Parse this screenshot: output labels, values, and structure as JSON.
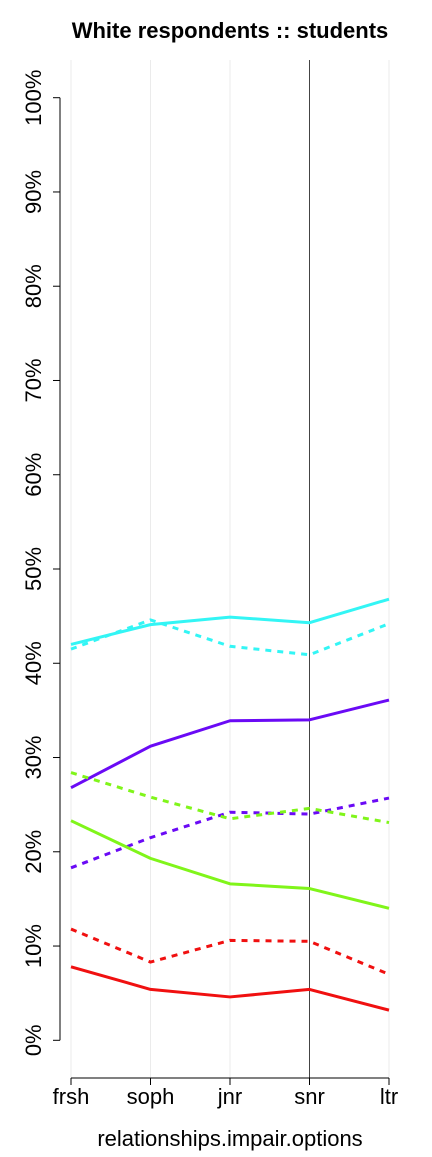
{
  "chart_data": {
    "type": "line",
    "title": "White respondents :: students",
    "x_label": "relationships.impair.options",
    "categories": [
      "frsh",
      "soph",
      "jnr",
      "snr",
      "ltr"
    ],
    "series": [
      {
        "color": "#33f5f5",
        "dash": false,
        "values": [
          42.0,
          44.1,
          44.9,
          44.3,
          46.8
        ]
      },
      {
        "color": "#33f5f5",
        "dash": true,
        "values": [
          41.5,
          44.6,
          41.8,
          40.9,
          44.2
        ]
      },
      {
        "color": "#6a0af5",
        "dash": false,
        "values": [
          26.8,
          31.2,
          33.9,
          34.0,
          36.1
        ]
      },
      {
        "color": "#6a0af5",
        "dash": true,
        "values": [
          18.3,
          21.5,
          24.2,
          24.0,
          25.7
        ]
      },
      {
        "color": "#80f51a",
        "dash": false,
        "values": [
          23.3,
          19.3,
          16.6,
          16.1,
          14.0
        ]
      },
      {
        "color": "#80f51a",
        "dash": true,
        "values": [
          28.4,
          25.8,
          23.5,
          24.6,
          23.1
        ]
      },
      {
        "color": "#f01010",
        "dash": false,
        "values": [
          7.8,
          5.4,
          4.6,
          5.4,
          3.2
        ]
      },
      {
        "color": "#f01010",
        "dash": true,
        "values": [
          11.8,
          8.3,
          10.6,
          10.5,
          7.0
        ]
      }
    ],
    "ylim": [
      -4,
      104
    ],
    "yticks": [
      {
        "value": 0,
        "label": "0%"
      },
      {
        "value": 10,
        "label": "10%"
      },
      {
        "value": 20,
        "label": "20%"
      },
      {
        "value": 30,
        "label": "30%"
      },
      {
        "value": 40,
        "label": "40%"
      },
      {
        "value": 50,
        "label": "50%"
      },
      {
        "value": 60,
        "label": "60%"
      },
      {
        "value": 70,
        "label": "70%"
      },
      {
        "value": 80,
        "label": "80%"
      },
      {
        "value": 90,
        "label": "90%"
      },
      {
        "value": 100,
        "label": "100%"
      }
    ],
    "grid": true,
    "vline": "snr"
  }
}
